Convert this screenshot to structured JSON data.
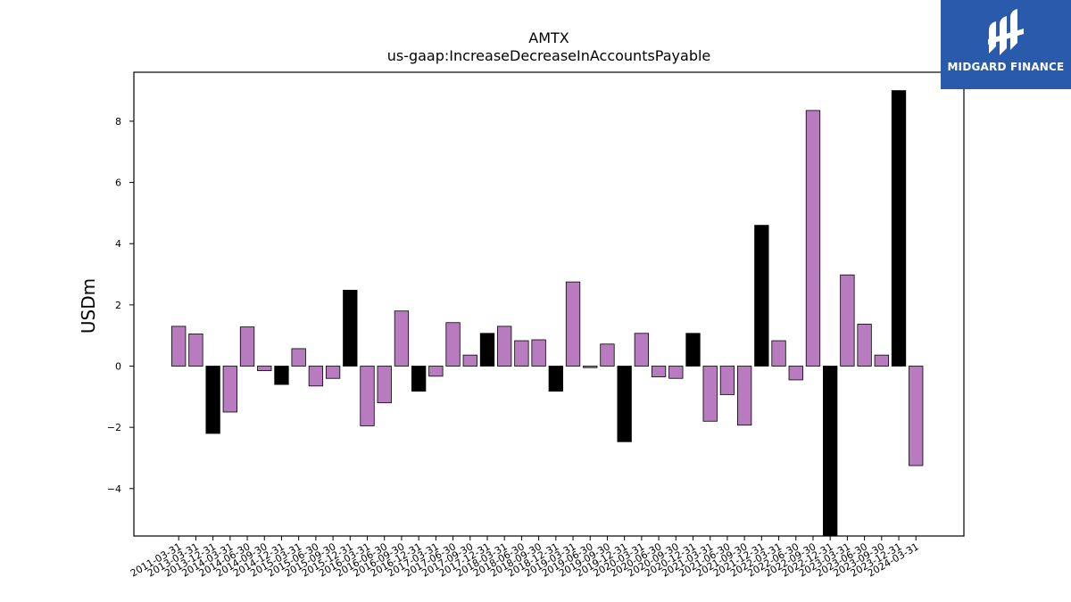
{
  "brand": {
    "name": "MIDGARD FINANCE",
    "bg_color": "#2a5aab"
  },
  "chart_data": {
    "type": "bar",
    "title": "AMTX",
    "subtitle": "us-gaap:IncreaseDecreaseInAccountsPayable",
    "xlabel": "",
    "ylabel": "USDm",
    "ylim": [
      -5.55,
      9.6
    ],
    "yticks": [
      -4,
      -2,
      0,
      2,
      4,
      6,
      8
    ],
    "ytick_labels": [
      "−4",
      "−2",
      "0",
      "2",
      "4",
      "6",
      "8"
    ],
    "grid": false,
    "colors": {
      "quarter": "#b87bbf",
      "year_end": "#000000",
      "edge": "#000000"
    },
    "categories": [
      "2011-03-31",
      "2013-03-31",
      "2013-12-31",
      "2014-03-31",
      "2014-06-30",
      "2014-09-30",
      "2014-12-31",
      "2015-03-31",
      "2015-06-30",
      "2015-09-30",
      "2015-12-31",
      "2016-03-31",
      "2016-06-30",
      "2016-09-30",
      "2016-12-31",
      "2017-03-31",
      "2017-06-30",
      "2017-09-30",
      "2017-12-31",
      "2018-03-31",
      "2018-06-30",
      "2018-09-30",
      "2018-12-31",
      "2019-03-31",
      "2019-06-30",
      "2019-09-30",
      "2019-12-31",
      "2020-03-31",
      "2020-06-30",
      "2020-09-30",
      "2020-12-31",
      "2021-03-31",
      "2021-06-30",
      "2021-09-30",
      "2021-12-31",
      "2022-03-31",
      "2022-06-30",
      "2022-09-30",
      "2022-12-31",
      "2023-03-31",
      "2023-06-30",
      "2023-09-30",
      "2023-12-31",
      "2024-03-31"
    ],
    "values": [
      1.3,
      1.05,
      -2.2,
      -1.5,
      1.28,
      -0.15,
      -0.6,
      0.57,
      -0.65,
      -0.4,
      2.48,
      -1.95,
      -1.2,
      1.8,
      -0.82,
      -0.33,
      1.42,
      0.36,
      1.07,
      1.3,
      0.83,
      0.86,
      -0.82,
      2.75,
      -0.05,
      0.72,
      -2.47,
      1.07,
      -0.35,
      -0.4,
      1.07,
      -1.8,
      -0.93,
      -1.93,
      4.6,
      0.83,
      -0.45,
      8.35,
      -5.8,
      2.98,
      1.37,
      0.36,
      9.0,
      -3.25
    ],
    "year_end": [
      false,
      false,
      true,
      false,
      false,
      false,
      true,
      false,
      false,
      false,
      true,
      false,
      false,
      false,
      true,
      false,
      false,
      false,
      true,
      false,
      false,
      false,
      true,
      false,
      false,
      false,
      true,
      false,
      false,
      false,
      true,
      false,
      false,
      false,
      true,
      false,
      false,
      false,
      true,
      false,
      false,
      false,
      true,
      false
    ]
  }
}
